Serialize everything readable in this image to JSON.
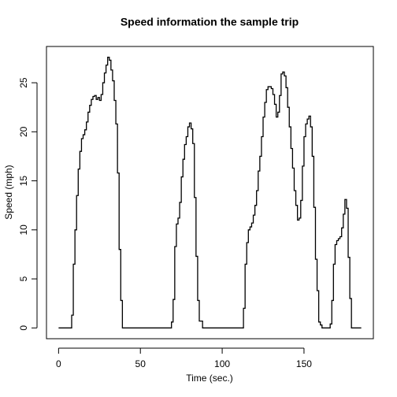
{
  "chart_data": {
    "type": "step",
    "title": "Speed information the sample trip",
    "x_label": "Time (sec.)",
    "y_label": "Speed (mph)",
    "x": [
      0,
      1,
      2,
      3,
      4,
      5,
      6,
      7,
      8,
      9,
      10,
      11,
      12,
      13,
      14,
      15,
      16,
      17,
      18,
      19,
      20,
      21,
      22,
      23,
      24,
      25,
      26,
      27,
      28,
      29,
      30,
      31,
      32,
      33,
      34,
      35,
      36,
      37,
      38,
      39,
      40,
      41,
      42,
      43,
      44,
      45,
      46,
      47,
      48,
      49,
      50,
      51,
      52,
      53,
      54,
      55,
      56,
      57,
      58,
      59,
      60,
      61,
      62,
      63,
      64,
      65,
      66,
      67,
      68,
      69,
      70,
      71,
      72,
      73,
      74,
      75,
      76,
      77,
      78,
      79,
      80,
      81,
      82,
      83,
      84,
      85,
      86,
      87,
      88,
      89,
      90,
      91,
      92,
      93,
      94,
      95,
      96,
      97,
      98,
      99,
      100,
      101,
      102,
      103,
      104,
      105,
      106,
      107,
      108,
      109,
      110,
      111,
      112,
      113,
      114,
      115,
      116,
      117,
      118,
      119,
      120,
      121,
      122,
      123,
      124,
      125,
      126,
      127,
      128,
      129,
      130,
      131,
      132,
      133,
      134,
      135,
      136,
      137,
      138,
      139,
      140,
      141,
      142,
      143,
      144,
      145,
      146,
      147,
      148,
      149,
      150,
      151,
      152,
      153,
      154,
      155,
      156,
      157,
      158,
      159,
      160,
      161,
      162,
      163,
      164,
      165,
      166,
      167,
      168,
      169,
      170,
      171,
      172,
      173,
      174,
      175,
      176,
      177,
      178,
      179,
      180,
      181,
      182,
      183,
      184,
      185
    ],
    "series": [
      {
        "color": "#000000",
        "values": [
          0,
          0,
          0,
          0,
          0,
          0,
          0,
          0,
          1.3,
          6.5,
          10,
          13.5,
          16.2,
          18,
          19.3,
          19.7,
          20.2,
          21,
          22,
          22.7,
          23.3,
          23.6,
          23.7,
          23.3,
          23.5,
          23.2,
          23.8,
          25,
          26,
          26.8,
          27.6,
          27.3,
          26.3,
          25.2,
          23.2,
          20.8,
          15.8,
          8,
          2.8,
          0,
          0,
          0,
          0,
          0,
          0,
          0,
          0,
          0,
          0,
          0,
          0,
          0,
          0,
          0,
          0,
          0,
          0,
          0,
          0,
          0,
          0,
          0,
          0,
          0,
          0,
          0,
          0,
          0,
          0,
          0.6,
          2.9,
          8.3,
          10.6,
          11.2,
          12.8,
          15.4,
          17.2,
          18.7,
          19.5,
          20.5,
          20.9,
          20.3,
          18.8,
          13.3,
          7.3,
          2.8,
          0.7,
          0.7,
          0,
          0,
          0,
          0,
          0,
          0,
          0,
          0,
          0,
          0,
          0,
          0,
          0,
          0,
          0,
          0,
          0,
          0,
          0,
          0,
          0,
          0,
          0,
          0,
          0,
          2,
          6.5,
          8.7,
          10,
          10.3,
          10.7,
          11.5,
          12.5,
          14,
          16,
          17.5,
          19.5,
          21.5,
          23,
          24.3,
          24.6,
          24.6,
          24.4,
          23.8,
          22.8,
          21.5,
          22,
          23.7,
          25.9,
          26.1,
          25.7,
          24.5,
          22.5,
          20.5,
          18.3,
          16.3,
          14,
          12.5,
          11,
          11.2,
          13,
          16.5,
          19.5,
          20.8,
          21.3,
          21.6,
          20.5,
          17.5,
          12.3,
          7,
          3.8,
          0.6,
          0.3,
          0,
          0,
          0,
          0,
          0,
          0.4,
          2.8,
          6.5,
          8.5,
          8.9,
          9.1,
          9.3,
          10.2,
          11.6,
          13.1,
          12.2,
          7.2,
          3,
          0,
          0,
          0,
          0,
          0,
          0,
          0
        ]
      }
    ],
    "xlim": [
      -7.4,
      192.4
    ],
    "ylim": [
      -1.1,
      28.7
    ],
    "xticks": [
      0,
      50,
      100,
      150
    ],
    "yticks": [
      0,
      5,
      10,
      15,
      20,
      25
    ]
  }
}
